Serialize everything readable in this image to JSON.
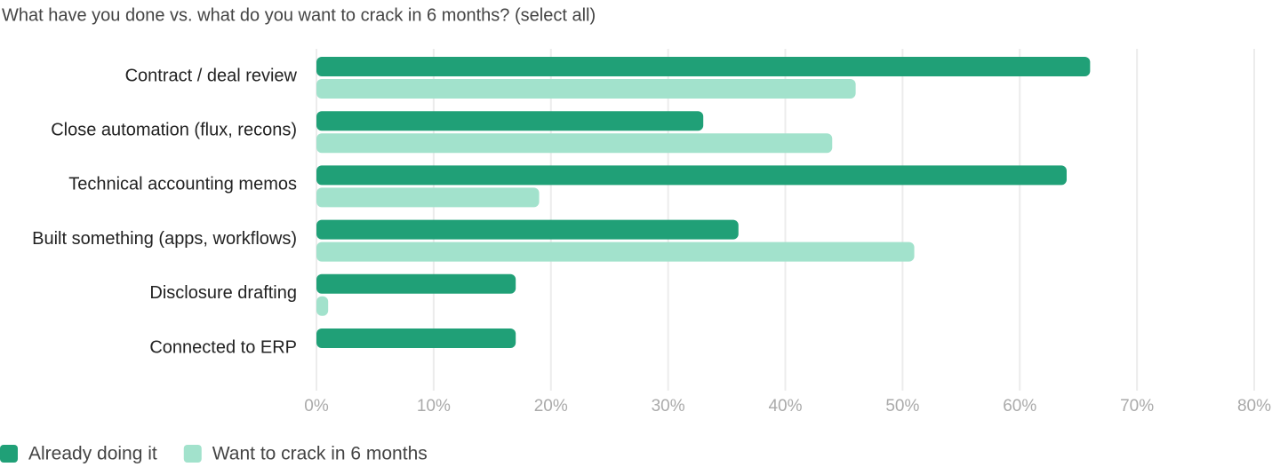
{
  "chart_data": {
    "type": "hbar",
    "title": "What have you done vs. what do you want to crack in 6 months? (select all)",
    "categories": [
      "Contract / deal review",
      "Close automation (flux, recons)",
      "Technical accounting memos",
      "Built something (apps, workflows)",
      "Disclosure drafting",
      "Connected to ERP"
    ],
    "series": [
      {
        "name": "Already doing it",
        "color": "#20a077",
        "values": [
          66,
          33,
          64,
          36,
          17,
          17
        ]
      },
      {
        "name": "Want to crack in 6 months",
        "color": "#a2e2cc",
        "values": [
          46,
          44,
          19,
          51,
          1,
          0
        ]
      }
    ],
    "xlim": [
      0,
      80
    ],
    "xticks": [
      {
        "value": 0,
        "label": "0%"
      },
      {
        "value": 10,
        "label": "10%"
      },
      {
        "value": 20,
        "label": "20%"
      },
      {
        "value": 30,
        "label": "30%"
      },
      {
        "value": 40,
        "label": "40%"
      },
      {
        "value": 50,
        "label": "50%"
      },
      {
        "value": 60,
        "label": "60%"
      },
      {
        "value": 70,
        "label": "70%"
      },
      {
        "value": 80,
        "label": "80%"
      }
    ],
    "grid": true,
    "legend": "bottom-left"
  }
}
